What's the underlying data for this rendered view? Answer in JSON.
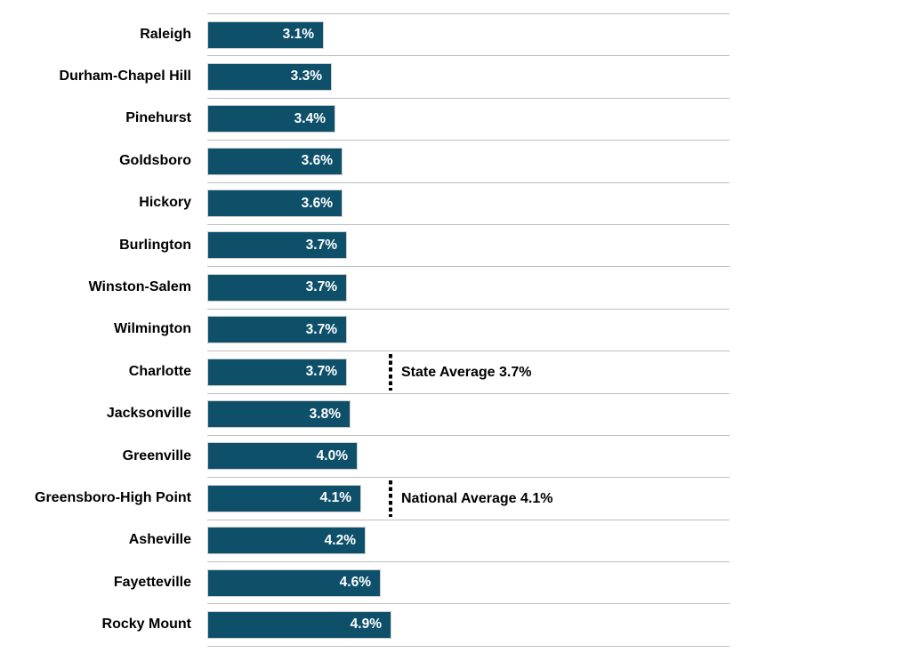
{
  "chart_data": {
    "type": "bar",
    "orientation": "horizontal",
    "title": "",
    "xlabel": "",
    "ylabel": "",
    "xlim": [
      0,
      14
    ],
    "grid": "row-separator-lines",
    "legend": "none",
    "categories": [
      "Raleigh",
      "Durham-Chapel Hill",
      "Pinehurst",
      "Goldsboro",
      "Hickory",
      "Burlington",
      "Winston-Salem",
      "Wilmington",
      "Charlotte",
      "Jacksonville",
      "Greenville",
      "Greensboro-High Point",
      "Asheville",
      "Fayetteville",
      "Rocky Mount"
    ],
    "values": [
      3.1,
      3.3,
      3.4,
      3.6,
      3.6,
      3.7,
      3.7,
      3.7,
      3.7,
      3.8,
      4.0,
      4.1,
      4.2,
      4.6,
      4.9
    ],
    "labels": [
      "3.1%",
      "3.3%",
      "3.4%",
      "3.6%",
      "3.6%",
      "3.7%",
      "3.7%",
      "3.7%",
      "3.7%",
      "3.8%",
      "4.0%",
      "4.1%",
      "4.2%",
      "4.6%",
      "4.9%"
    ],
    "annotations": [
      {
        "row": "Charlotte",
        "row_index": 8,
        "label": "State Average 3.7%",
        "marker": "dotted-vertical-line"
      },
      {
        "row": "Greensboro-High Point",
        "row_index": 11,
        "label": "National Average 4.1%",
        "marker": "dotted-vertical-line"
      }
    ],
    "colors": {
      "bar": "#0E506A",
      "bar_border": "#CFCFCF",
      "gridline": "#BEBEBE",
      "value_label": "#FFFFFF",
      "category_label": "#000000",
      "annotation": "#000000"
    }
  }
}
